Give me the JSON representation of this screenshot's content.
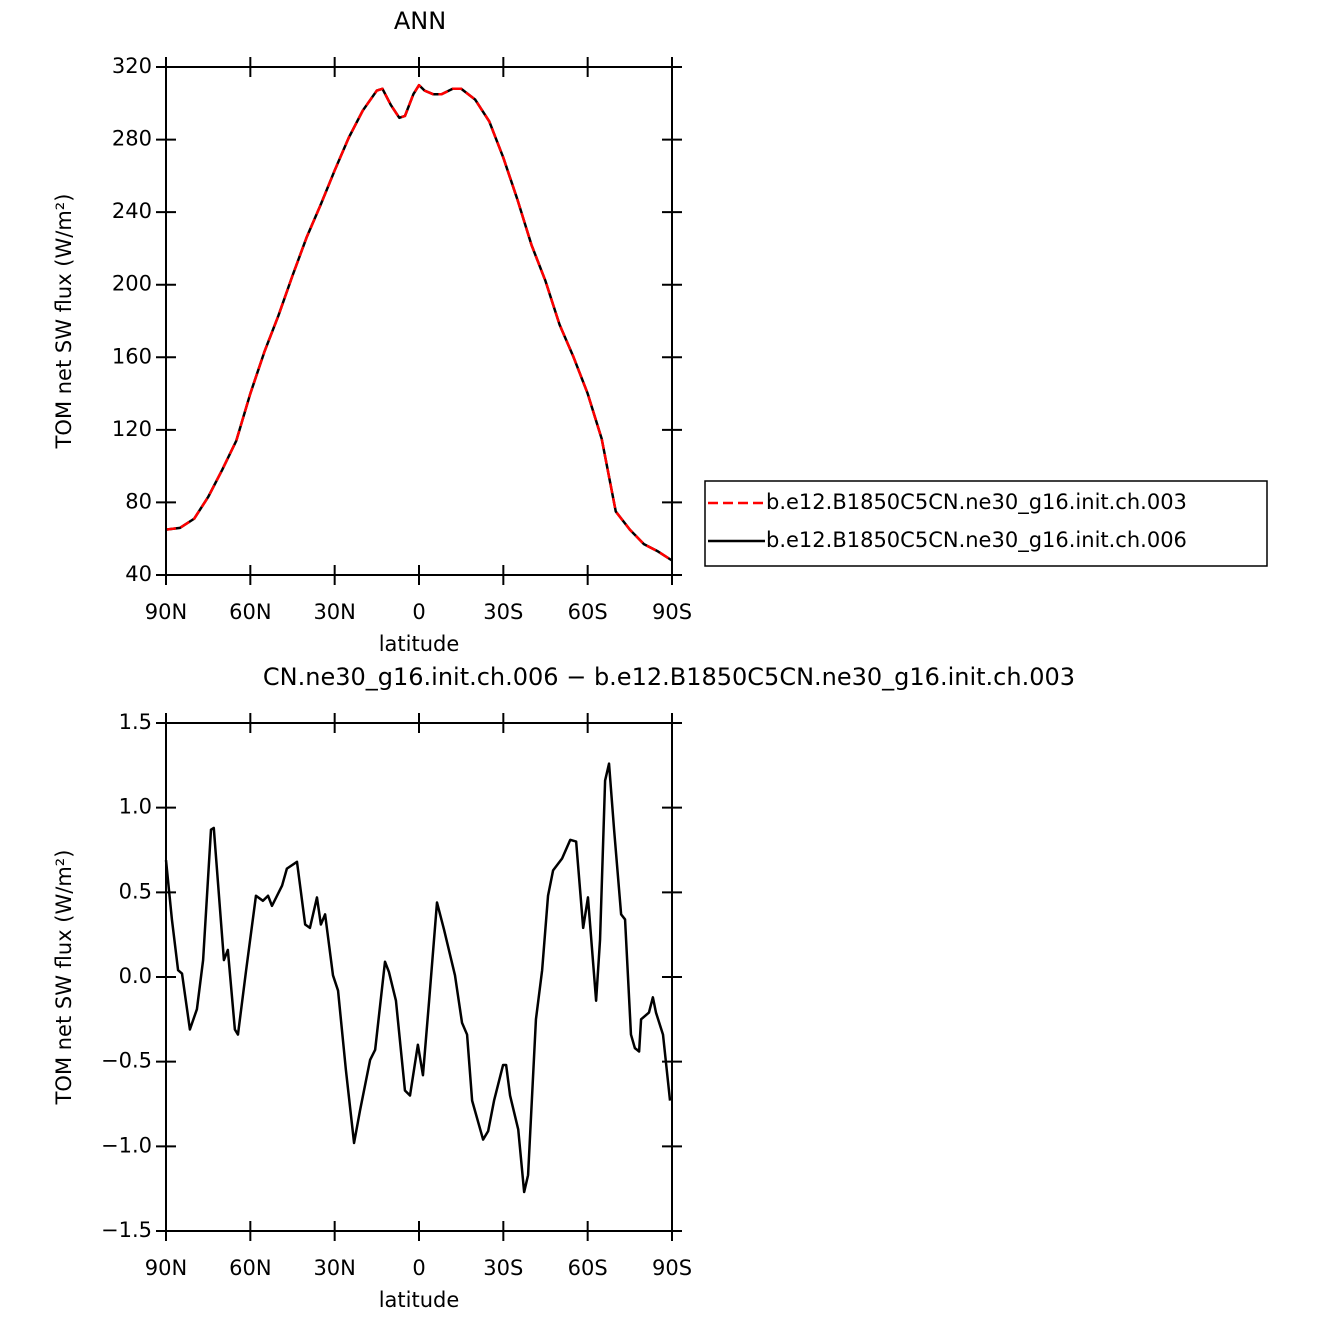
{
  "chart_data": [
    {
      "type": "line",
      "title": "ANN",
      "x_label": "latitude",
      "y_label": "TOM net SW flux (W/m²)",
      "x": [
        90,
        85,
        80,
        75,
        70,
        65,
        60,
        55,
        50,
        45,
        40,
        35,
        30,
        25,
        20,
        15,
        13,
        10,
        7,
        5,
        2,
        0,
        -2,
        -5,
        -8,
        -12,
        -15,
        -20,
        -25,
        -30,
        -35,
        -40,
        -45,
        -50,
        -55,
        -60,
        -65,
        -70,
        -75,
        -80,
        -85,
        -90
      ],
      "series": [
        {
          "name": "b.e12.B1850C5CN.ne30_g16.init.ch.003",
          "color": "#ff0000",
          "dashed": true,
          "values": [
            65,
            66,
            71,
            83,
            98,
            114,
            140,
            163,
            183,
            205,
            226,
            244,
            263,
            281,
            296,
            307,
            308,
            299,
            292,
            293,
            305,
            310,
            307,
            305,
            305,
            308,
            308,
            302,
            290,
            270,
            247,
            222,
            202,
            178,
            160,
            140,
            115,
            75,
            65,
            57,
            53,
            48
          ]
        },
        {
          "name": "b.e12.B1850C5CN.ne30_g16.init.ch.006",
          "color": "#000000",
          "dashed": false,
          "values": [
            65,
            66,
            71,
            83,
            98,
            114,
            140,
            163,
            183,
            205,
            226,
            244,
            263,
            281,
            296,
            307,
            308,
            299,
            292,
            293,
            305,
            310,
            307,
            305,
            305,
            308,
            308,
            302,
            290,
            270,
            247,
            222,
            202,
            178,
            160,
            140,
            115,
            75,
            65,
            57,
            53,
            48
          ]
        }
      ],
      "xlim": [
        90,
        -90
      ],
      "xticks": [
        {
          "value": 90,
          "label": "90N"
        },
        {
          "value": 60,
          "label": "60N"
        },
        {
          "value": 30,
          "label": "30N"
        },
        0,
        {
          "value": -30,
          "label": "30S"
        },
        {
          "value": -60,
          "label": "60S"
        },
        {
          "value": -90,
          "label": "90S"
        }
      ],
      "ylim": [
        40,
        320
      ],
      "yticks": [
        40,
        80,
        120,
        160,
        200,
        240,
        280,
        320
      ],
      "legend": "right"
    },
    {
      "type": "line",
      "title": "CN.ne30_g16.init.ch.006 − b.e12.B1850C5CN.ne30_g16.init.ch.003",
      "x_label": "latitude",
      "y_label": "TOM net SW flux (W/m²)",
      "x": [
        90,
        87.9,
        85.7,
        84.3,
        81.5,
        79,
        76.8,
        74,
        73,
        69.4,
        68,
        65.5,
        64.4,
        61.5,
        58,
        55.5,
        53.7,
        52.3,
        48.7,
        47,
        43.4,
        40.5,
        38.8,
        36.3,
        34.9,
        33.4,
        30.6,
        28.8,
        26,
        23.1,
        21,
        17.4,
        15.6,
        12.1,
        10.7,
        8.2,
        5,
        3.2,
        0.4,
        -1.4,
        -3.6,
        -6.4,
        -8.9,
        -12.8,
        -15.3,
        -17.1,
        -18.9,
        -22.8,
        -24.6,
        -26.7,
        -29.9,
        -31,
        -32.4,
        -35.3,
        -37.4,
        -38.8,
        -41.6,
        -43.8,
        -45.9,
        -47.7,
        -50.9,
        -53.8,
        -55.9,
        -58.4,
        -60.1,
        -63,
        -64.4,
        -66.2,
        -67.6,
        -69.4,
        -71.9,
        -73.3,
        -75.4,
        -76.8,
        -78.3,
        -79,
        -81.8,
        -83.2,
        -84.3,
        -86.8,
        -89.3
      ],
      "series": [
        {
          "color": "#000000",
          "dashed": false,
          "values": [
            0.69,
            0.34,
            0.04,
            0.02,
            -0.31,
            -0.19,
            0.1,
            0.87,
            0.88,
            0.1,
            0.16,
            -0.31,
            -0.34,
            0.04,
            0.48,
            0.45,
            0.48,
            0.42,
            0.54,
            0.64,
            0.68,
            0.31,
            0.29,
            0.47,
            0.31,
            0.37,
            0.01,
            -0.08,
            -0.55,
            -0.98,
            -0.79,
            -0.49,
            -0.43,
            0.09,
            0.03,
            -0.14,
            -0.67,
            -0.7,
            -0.4,
            -0.58,
            -0.14,
            0.44,
            0.28,
            0.01,
            -0.27,
            -0.34,
            -0.73,
            -0.96,
            -0.91,
            -0.73,
            -0.52,
            -0.52,
            -0.7,
            -0.9,
            -1.27,
            -1.17,
            -0.25,
            0.04,
            0.48,
            0.63,
            0.7,
            0.81,
            0.8,
            0.29,
            0.47,
            -0.14,
            0.22,
            1.16,
            1.26,
            0.87,
            0.37,
            0.34,
            -0.34,
            -0.42,
            -0.44,
            -0.25,
            -0.21,
            -0.12,
            -0.21,
            -0.34,
            -0.73
          ]
        }
      ],
      "xlim": [
        90,
        -90
      ],
      "xticks": [
        {
          "value": 90,
          "label": "90N"
        },
        {
          "value": 60,
          "label": "60N"
        },
        {
          "value": 30,
          "label": "30N"
        },
        0,
        {
          "value": -30,
          "label": "30S"
        },
        {
          "value": -60,
          "label": "60S"
        },
        {
          "value": -90,
          "label": "90S"
        }
      ],
      "ylim": [
        -1.5,
        1.5
      ],
      "yticks": [
        {
          "value": -1.5,
          "label": "−1.5"
        },
        {
          "value": -1,
          "label": "−1.0"
        },
        {
          "value": -0.5,
          "label": "−0.5"
        },
        {
          "value": 0,
          "label": "0.0"
        },
        0.5,
        {
          "value": 1,
          "label": "1.0"
        },
        1.5
      ]
    }
  ]
}
